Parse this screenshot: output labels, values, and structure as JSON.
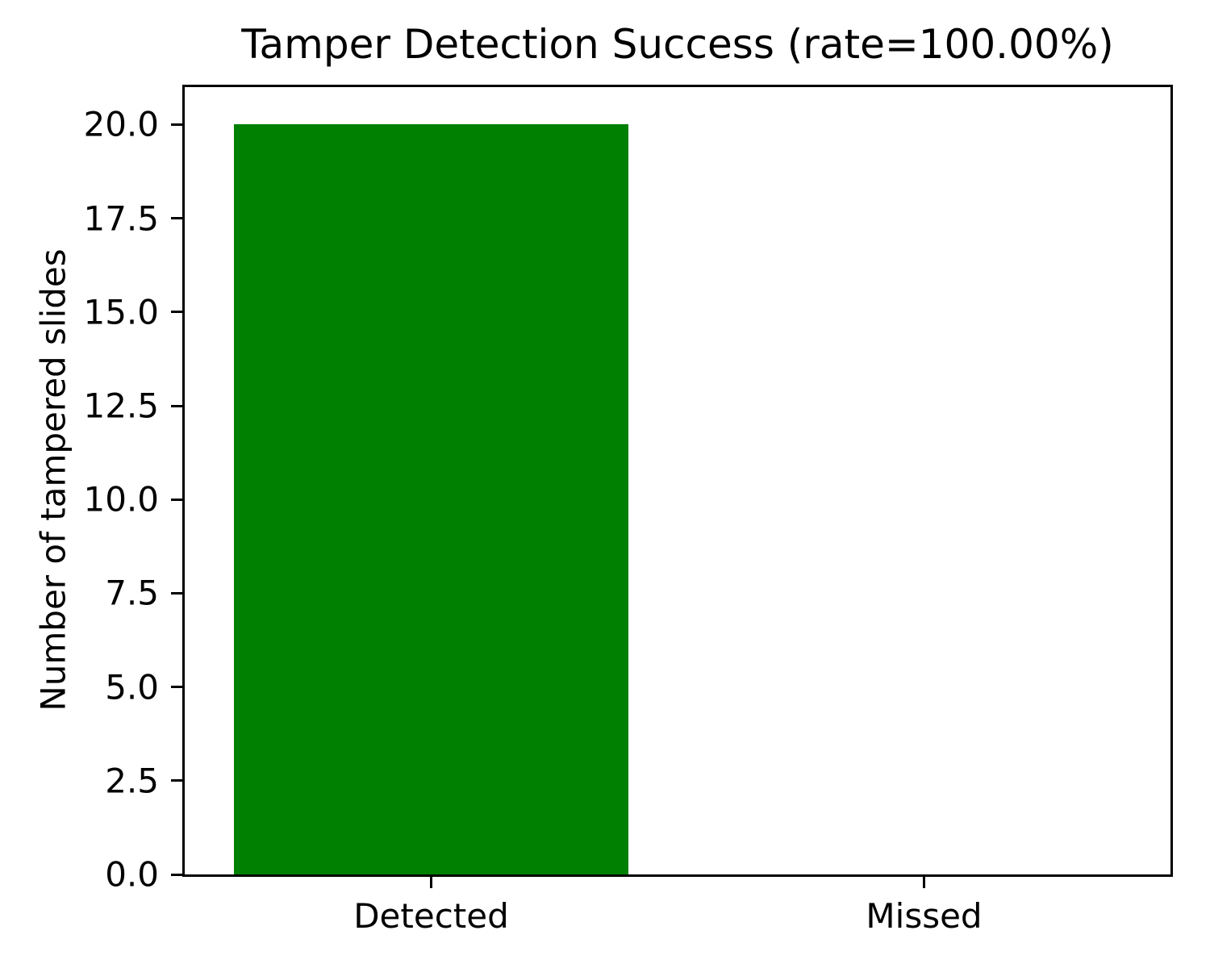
{
  "figure": {
    "background_color": "#ffffff",
    "text_color": "#000000",
    "spine_color": "#000000"
  },
  "chart_data": {
    "type": "bar",
    "title": "Tamper Detection Success (rate=100.00%)",
    "xlabel": "",
    "ylabel": "Number of tampered slides",
    "categories": [
      "Detected",
      "Missed"
    ],
    "values": [
      20,
      0
    ],
    "bar_color": "#008000",
    "bar_width": 0.8,
    "ylim": [
      0,
      21
    ],
    "yticks": [
      0.0,
      2.5,
      5.0,
      7.5,
      10.0,
      12.5,
      15.0,
      17.5,
      20.0
    ],
    "ytick_labels": [
      "0.0",
      "2.5",
      "5.0",
      "7.5",
      "10.0",
      "12.5",
      "15.0",
      "17.5",
      "20.0"
    ],
    "grid": false,
    "legend_position": "none"
  }
}
